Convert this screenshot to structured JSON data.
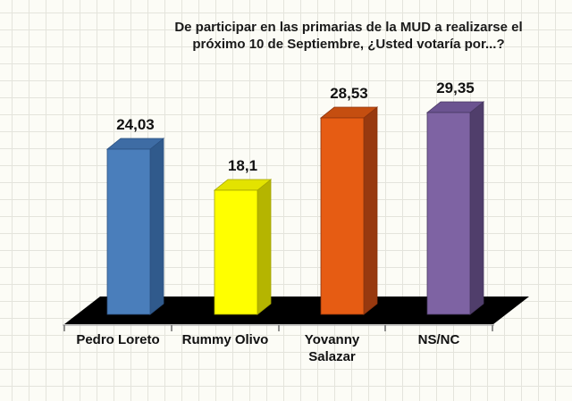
{
  "chart": {
    "title_line1": "De participar en las primarias de la MUD a realizarse el",
    "title_line2": "próximo 10 de Septiembre, ¿Usted votaría por...?"
  },
  "chart_data": {
    "type": "bar",
    "style": "3d-column",
    "title": "De participar en las primarias de la MUD a realizarse el próximo 10 de Septiembre, ¿Usted votaría por...?",
    "categories": [
      "Pedro Loreto",
      "Rummy Olivo",
      "Yovanny Salazar",
      "NS/NC"
    ],
    "categories_display": [
      "Pedro Loreto",
      "Rummy Olivo",
      "Yovanny\nSalazar",
      "NS/NC"
    ],
    "values": [
      24.03,
      18.1,
      28.53,
      29.35
    ],
    "value_labels": [
      "24,03",
      "18,1",
      "28,53",
      "29,35"
    ],
    "bar_colors": [
      {
        "front": "#4A7EBB",
        "side": "#305A8C",
        "top": "#3E6CA4",
        "edge": "#2B5080"
      },
      {
        "front": "#FFFF00",
        "side": "#B5B500",
        "top": "#E3E300",
        "edge": "#A3A300"
      },
      {
        "front": "#E65C13",
        "side": "#98390F",
        "top": "#C54E10",
        "edge": "#8A330D"
      },
      {
        "front": "#7E63A3",
        "side": "#503E6B",
        "top": "#6B5390",
        "edge": "#473760"
      }
    ],
    "platform_color": "#000000",
    "axis_line_color": "#b3b3b3",
    "tick_color": "#777777",
    "ylim": [
      0,
      30
    ],
    "legend": "none",
    "grid": "graph-paper-background",
    "data_labels": "above-bars"
  }
}
